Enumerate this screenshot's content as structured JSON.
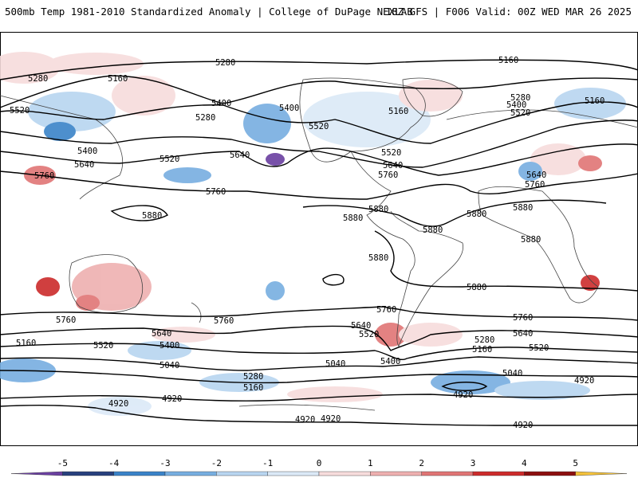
{
  "header": {
    "title_left": "500mb Temp 1981-2010 Standardized Anomaly | College of DuPage NEXLAB",
    "title_right": "18Z GFS | F006 Valid: 00Z WED MAR 26 2025"
  },
  "contour_labels": [
    "5280",
    "5160",
    "5520",
    "5400",
    "5640",
    "5760",
    "5880",
    "5040",
    "4920"
  ],
  "colorbar": {
    "ticks": [
      "-5",
      "-4",
      "-3",
      "-2",
      "-1",
      "0",
      "1",
      "2",
      "3",
      "4",
      "5"
    ],
    "colors": [
      "#6a3fa0",
      "#27407d",
      "#3a83c8",
      "#77aee0",
      "#b8d5f0",
      "#dbe9f7",
      "#f7dcdc",
      "#eeb0b0",
      "#e07575",
      "#cc2b2b",
      "#8c0f0f",
      "#f3c13a"
    ]
  }
}
